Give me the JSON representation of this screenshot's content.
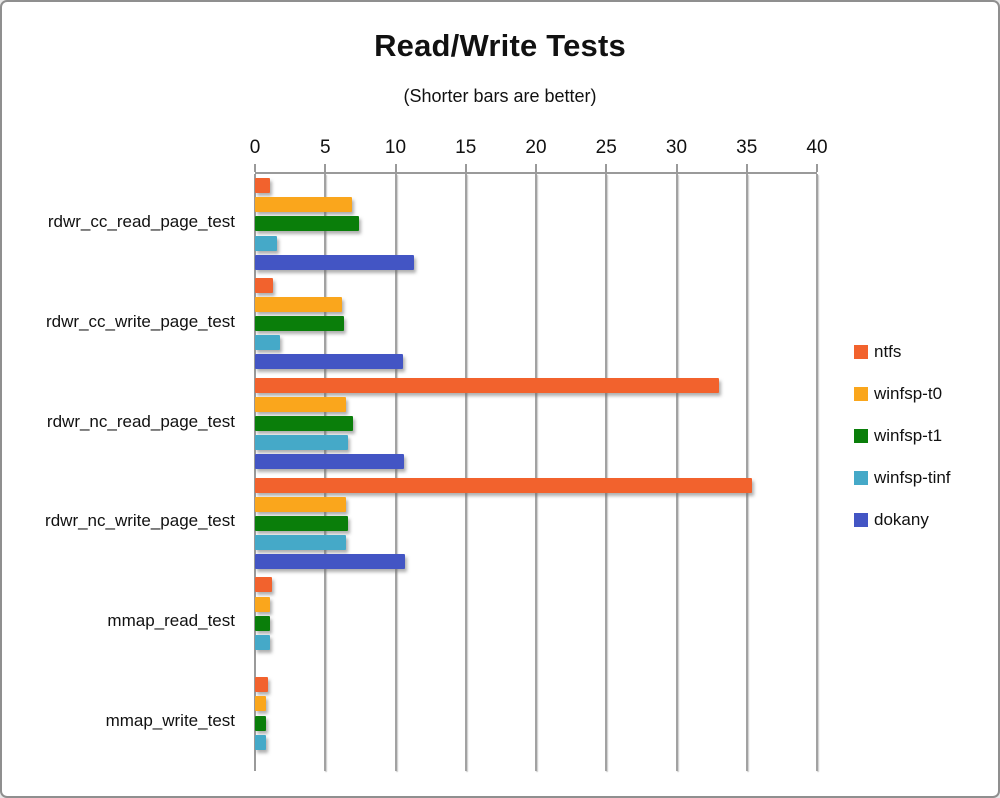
{
  "title": "Read/Write Tests",
  "subtitle": "(Shorter bars are better)",
  "chart_data": {
    "type": "bar",
    "orientation": "horizontal",
    "title": "Read/Write Tests",
    "subtitle": "(Shorter bars are better)",
    "axis_position": "top",
    "grid": true,
    "legend_position": "right",
    "xlim": [
      0,
      40
    ],
    "x_ticks": [
      0,
      5,
      10,
      15,
      20,
      25,
      30,
      35,
      40
    ],
    "categories": [
      "rdwr_cc_read_page_test",
      "rdwr_cc_write_page_test",
      "rdwr_nc_read_page_test",
      "rdwr_nc_write_page_test",
      "mmap_read_test",
      "mmap_write_test"
    ],
    "series": [
      {
        "name": "ntfs",
        "color": "#F2622D",
        "values": [
          1.1,
          1.3,
          33.0,
          35.4,
          1.2,
          0.9
        ]
      },
      {
        "name": "winfsp-t0",
        "color": "#FAA61C",
        "values": [
          6.9,
          6.2,
          6.5,
          6.5,
          1.1,
          0.8
        ]
      },
      {
        "name": "winfsp-t1",
        "color": "#0A7E0A",
        "values": [
          7.4,
          6.3,
          7.0,
          6.6,
          1.1,
          0.8
        ]
      },
      {
        "name": "winfsp-tinf",
        "color": "#45A9C8",
        "values": [
          1.6,
          1.8,
          6.6,
          6.5,
          1.1,
          0.8
        ]
      },
      {
        "name": "dokany",
        "color": "#4355C4",
        "values": [
          11.3,
          10.5,
          10.6,
          10.7,
          0,
          0
        ]
      }
    ]
  }
}
